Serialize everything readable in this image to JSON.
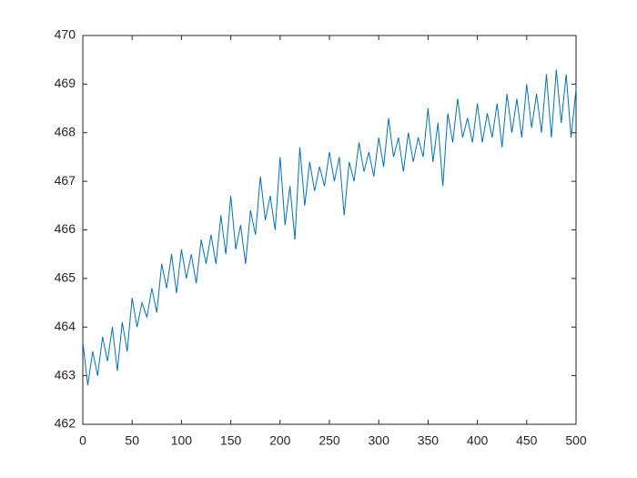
{
  "chart_data": {
    "type": "line",
    "x": [
      0,
      5,
      10,
      15,
      20,
      25,
      30,
      35,
      40,
      45,
      50,
      55,
      60,
      65,
      70,
      75,
      80,
      85,
      90,
      95,
      100,
      105,
      110,
      115,
      120,
      125,
      130,
      135,
      140,
      145,
      150,
      155,
      160,
      165,
      170,
      175,
      180,
      185,
      190,
      195,
      200,
      205,
      210,
      215,
      220,
      225,
      230,
      235,
      240,
      245,
      250,
      255,
      260,
      265,
      270,
      275,
      280,
      285,
      290,
      295,
      300,
      305,
      310,
      315,
      320,
      325,
      330,
      335,
      340,
      345,
      350,
      355,
      360,
      365,
      370,
      375,
      380,
      385,
      390,
      395,
      400,
      405,
      410,
      415,
      420,
      425,
      430,
      435,
      440,
      445,
      450,
      455,
      460,
      465,
      470,
      475,
      480,
      485,
      490,
      495,
      500
    ],
    "series": [
      {
        "color": "#0072bd",
        "values": [
          463.7,
          462.8,
          463.5,
          463.0,
          463.8,
          463.3,
          464.0,
          463.1,
          464.1,
          463.5,
          464.6,
          464.0,
          464.5,
          464.2,
          464.8,
          464.3,
          465.3,
          464.8,
          465.5,
          464.7,
          465.6,
          465.0,
          465.5,
          464.9,
          465.8,
          465.3,
          465.9,
          465.3,
          466.3,
          465.5,
          466.7,
          465.6,
          466.1,
          465.3,
          466.4,
          465.9,
          467.1,
          466.2,
          466.7,
          466.0,
          467.5,
          466.1,
          466.9,
          465.8,
          467.7,
          466.5,
          467.4,
          466.8,
          467.3,
          466.9,
          467.6,
          467.0,
          467.5,
          466.3,
          467.4,
          467.0,
          467.8,
          467.2,
          467.6,
          467.1,
          467.9,
          467.3,
          468.3,
          467.5,
          467.9,
          467.2,
          468.0,
          467.4,
          467.9,
          467.5,
          468.5,
          467.4,
          468.2,
          466.9,
          468.4,
          467.8,
          468.7,
          467.9,
          468.3,
          467.8,
          468.6,
          467.8,
          468.4,
          467.9,
          468.6,
          467.7,
          468.8,
          468.0,
          468.7,
          467.9,
          469.0,
          468.1,
          468.8,
          468.0,
          469.2,
          467.9,
          469.3,
          468.2,
          469.2,
          467.9,
          468.9
        ]
      }
    ],
    "xlim": [
      0,
      500
    ],
    "xticks": [
      0,
      50,
      100,
      150,
      200,
      250,
      300,
      350,
      400,
      450,
      500
    ],
    "ylim": [
      462,
      470
    ],
    "yticks": [
      462,
      463,
      464,
      465,
      466,
      467,
      468,
      469,
      470
    ]
  }
}
